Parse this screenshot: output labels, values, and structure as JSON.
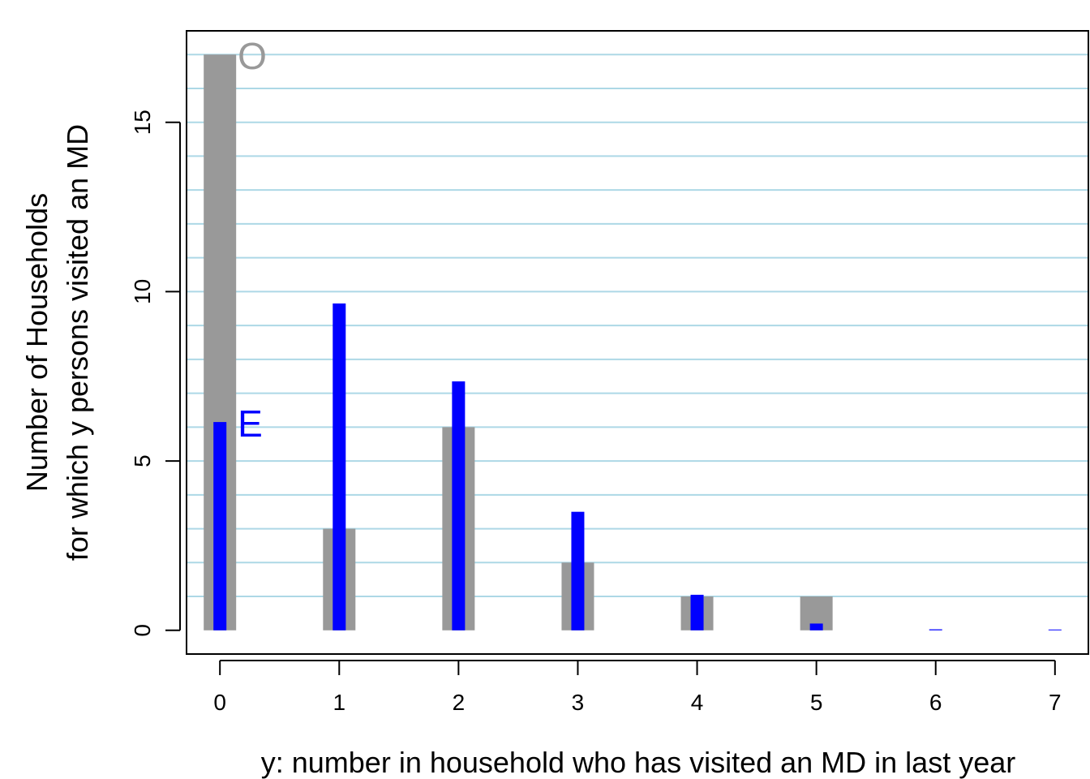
{
  "chart_data": {
    "type": "bar",
    "x": [
      0,
      1,
      2,
      3,
      4,
      5,
      6,
      7
    ],
    "x_ticks": [
      "0",
      "1",
      "2",
      "3",
      "4",
      "5",
      "6",
      "7"
    ],
    "y_ticks": [
      "0",
      "5",
      "10",
      "15"
    ],
    "y_tick_values": [
      0,
      5,
      10,
      15
    ],
    "xlim": [
      -0.28,
      7.28
    ],
    "ylim": [
      -0.7,
      17.7
    ],
    "gridlines_y": [
      1,
      2,
      3,
      4,
      5,
      6,
      7,
      8,
      9,
      10,
      11,
      12,
      13,
      14,
      15,
      16,
      17
    ],
    "grid": true,
    "xlabel": "y: number in household who has visited an MD in last year",
    "ylabel_line1": "Number of Households",
    "ylabel_line2": "for which y persons visited an MD",
    "series": [
      {
        "name": "O",
        "color": "#999999",
        "values": [
          17,
          3,
          6,
          2,
          1,
          1,
          0,
          0
        ]
      },
      {
        "name": "E",
        "color": "#0000ff",
        "values": [
          6.15,
          9.65,
          7.35,
          3.5,
          1.05,
          0.2,
          0.03,
          0.005
        ]
      }
    ],
    "colors": {
      "grid": "#add8e6",
      "axis": "#000000"
    }
  }
}
